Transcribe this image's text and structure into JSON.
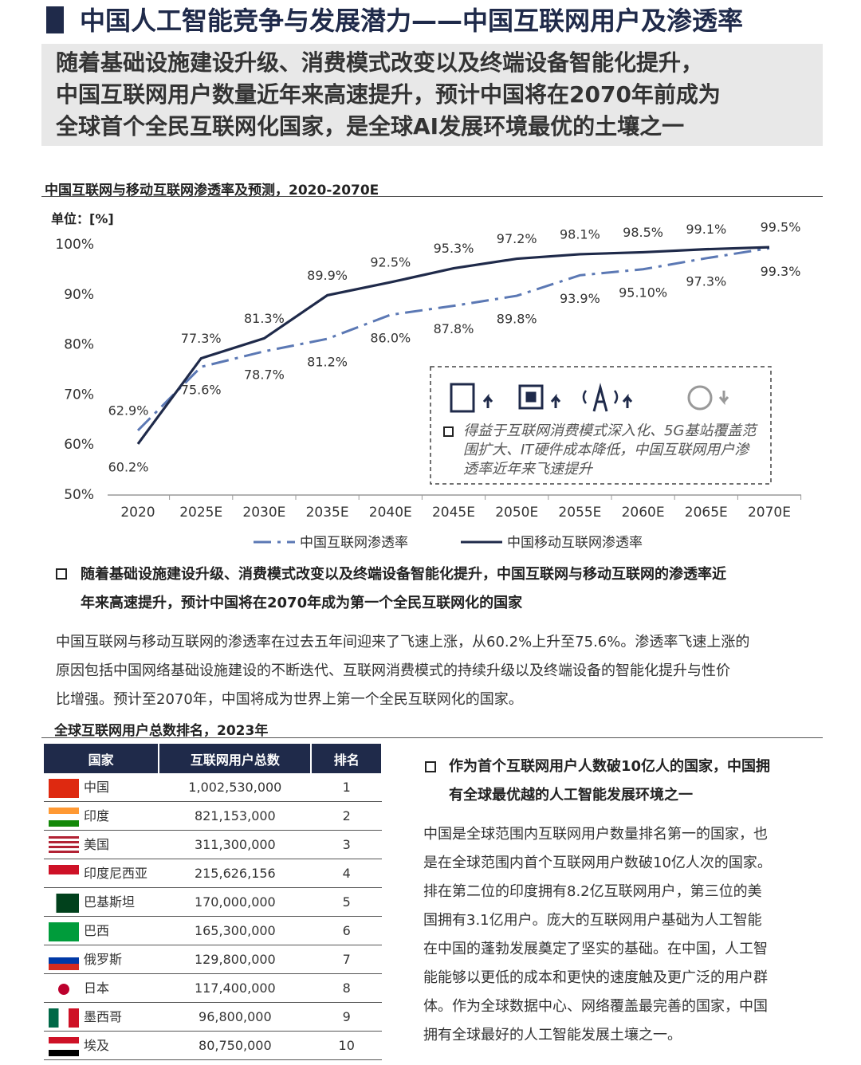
{
  "header": {
    "title": "中国人工智能竞争与发展潜力——中国互联网用户及渗透率",
    "summary": [
      "随着基础设施建设升级、消费模式改变以及终端设备智能化提升，",
      "中国互联网用户数量近年来高速提升，预计中国将在2070年前成为",
      "全球首个全民互联网化国家，是全球AI发展环境最优的土壤之一"
    ]
  },
  "chart_data": {
    "type": "line",
    "title": "中国互联网与移动互联网渗透率及预测，2020-2070E",
    "unit_label": "单位：[%]",
    "categories": [
      "2020",
      "2025E",
      "2030E",
      "2035E",
      "2040E",
      "2045E",
      "2050E",
      "2055E",
      "2060E",
      "2065E",
      "2070E"
    ],
    "series": [
      {
        "name": "中国互联网渗透率",
        "color": "#5b78b4",
        "style": "dashdot",
        "values": [
          62.9,
          75.6,
          78.7,
          81.2,
          86.0,
          87.8,
          89.8,
          93.9,
          95.1,
          97.3,
          99.3
        ],
        "value_labels": [
          "62.9%",
          "75.6%",
          "78.7%",
          "81.2%",
          "86.0%",
          "87.8%",
          "89.8%",
          "93.9%",
          "95.10%",
          "97.3%",
          "99.3%"
        ]
      },
      {
        "name": "中国移动互联网渗透率",
        "color": "#1f2a4a",
        "style": "solid",
        "values": [
          60.2,
          77.3,
          81.3,
          89.9,
          92.5,
          95.3,
          97.2,
          98.1,
          98.5,
          99.1,
          99.5
        ],
        "value_labels": [
          "60.2%",
          "77.3%",
          "81.3%",
          "89.9%",
          "92.5%",
          "95.3%",
          "97.2%",
          "98.1%",
          "98.5%",
          "99.1%",
          "99.5%"
        ]
      }
    ],
    "ylim": [
      50,
      100
    ],
    "yticks": [
      {
        "value": 50,
        "label": "50%"
      },
      {
        "value": 60,
        "label": "60%"
      },
      {
        "value": 70,
        "label": "70%"
      },
      {
        "value": 80,
        "label": "80%"
      },
      {
        "value": 90,
        "label": "90%"
      },
      {
        "value": 100,
        "label": "100%"
      }
    ],
    "annotation": "得益于互联网消费模式深入化、5G基站覆盖范围扩大、IT硬件成本降低，中国互联网用户渗透率近年来飞速提升"
  },
  "section1": {
    "heading": [
      "随着基础设施建设升级、消费模式改变以及终端设备智能化提升，中国互联网与移动互联网的渗透率近",
      "年来高速提升，预计中国将在2070年成为第一个全民互联网化的国家"
    ],
    "paragraph": [
      "中国互联网与移动互联网的渗透率在过去五年间迎来了飞速上涨，从60.2%上升至75.6%。渗透率飞速上涨的",
      "原因包括中国网络基础设施建设的不断迭代、互联网消费模式的持续升级以及终端设备的智能化提升与性价",
      "比增强。预计至2070年，中国将成为世界上第一个全民互联网化的国家。"
    ]
  },
  "table": {
    "title": "全球互联网用户总数排名，2023年",
    "columns": [
      "国家",
      "互联网用户总数",
      "排名"
    ],
    "rows": [
      [
        "中国",
        "1,002,530,000",
        1
      ],
      [
        "印度",
        "821,153,000",
        2
      ],
      [
        "美国",
        "311,300,000",
        3
      ],
      [
        "印度尼西亚",
        "215,626,156",
        4
      ],
      [
        "巴基斯坦",
        "170,000,000",
        5
      ],
      [
        "巴西",
        "165,300,000",
        6
      ],
      [
        "俄罗斯",
        "129,800,000",
        7
      ],
      [
        "日本",
        "117,400,000",
        8
      ],
      [
        "墨西哥",
        "96,800,000",
        9
      ],
      [
        "埃及",
        "80,750,000",
        10
      ]
    ]
  },
  "section2": {
    "heading": [
      "作为首个互联网用户人数破10亿人的国家，中国拥",
      "有全球最优越的人工智能发展环境之一"
    ],
    "paragraph": [
      "中国是全球范围内互联网用户数量排名第一的国家，也",
      "是在全球范围内首个互联网用户数破10亿人次的国家。",
      "排在第二位的印度拥有8.2亿互联网用户，第三位的美",
      "国拥有3.1亿用户。庞大的互联网用户基础为人工智能",
      "在中国的蓬勃发展奠定了坚实的基础。在中国，人工智",
      "能能够以更低的成本和更快的速度触及更广泛的用户群",
      "体。作为全球数据中心、网络覆盖最完善的国家，中国",
      "拥有全球最好的人工智能发展土壤之一。"
    ]
  }
}
